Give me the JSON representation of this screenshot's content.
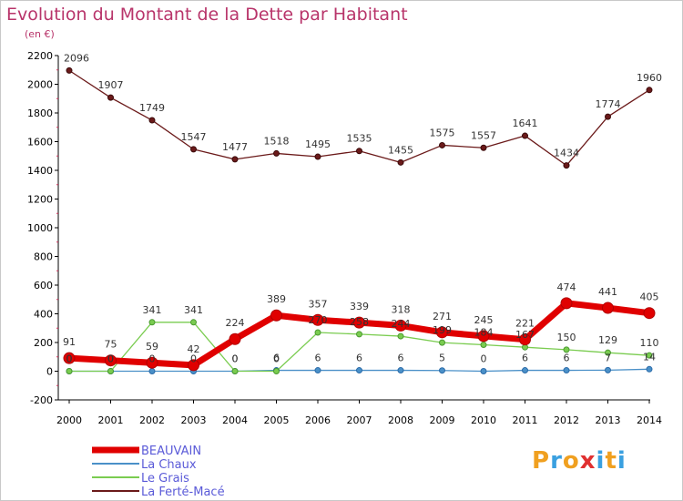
{
  "title": "Evolution du Montant de la Dette par Habitant",
  "subtitle": "(en €)",
  "logo": {
    "text": "Proxiti",
    "colors": [
      "#f0a020",
      "#3aa0e0",
      "#f0a020",
      "#e03030",
      "#3aa0e0",
      "#f0a020",
      "#3aa0e0"
    ]
  },
  "chart_data": {
    "type": "line",
    "categories": [
      "2000",
      "2001",
      "2002",
      "2003",
      "2004",
      "2005",
      "2006",
      "2007",
      "2008",
      "2009",
      "2010",
      "2011",
      "2012",
      "2013",
      "2014"
    ],
    "ylim": [
      -200,
      2200
    ],
    "yticks": [
      -200,
      0,
      200,
      400,
      600,
      800,
      1000,
      1200,
      1400,
      1600,
      1800,
      2000,
      2200
    ],
    "grid": false,
    "legend": "bottom-left",
    "series": [
      {
        "name": "BEAUVAIN",
        "color": "#e00000",
        "values": [
          91,
          75,
          59,
          42,
          224,
          389,
          357,
          339,
          318,
          271,
          245,
          221,
          474,
          441,
          405
        ]
      },
      {
        "name": "La Chaux",
        "color": "#4a90c8",
        "values": [
          0,
          0,
          0,
          0,
          0,
          6,
          6,
          6,
          6,
          5,
          0,
          6,
          6,
          7,
          14
        ]
      },
      {
        "name": "Le Grais",
        "color": "#7acc50",
        "values": [
          0,
          0,
          341,
          341,
          0,
          0,
          270,
          258,
          244,
          199,
          184,
          167,
          150,
          129,
          110
        ]
      },
      {
        "name": "La Ferté-Macé",
        "color": "#6b1a1a",
        "values": [
          2096,
          1907,
          1749,
          1547,
          1477,
          1518,
          1495,
          1535,
          1455,
          1575,
          1557,
          1641,
          1434,
          1774,
          1960
        ]
      }
    ]
  }
}
